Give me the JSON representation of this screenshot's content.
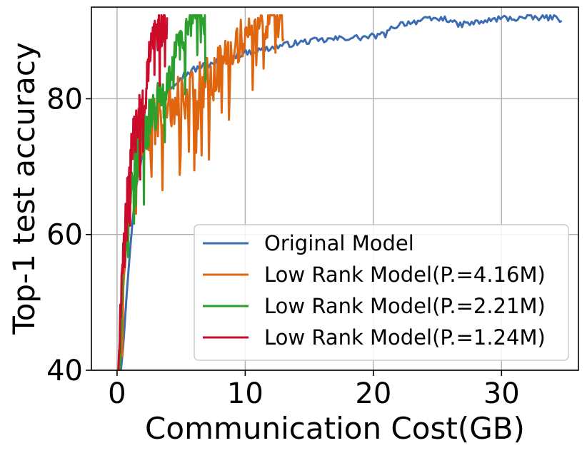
{
  "chart_data": {
    "type": "line",
    "title": "",
    "xlabel": "Communication Cost(GB)",
    "ylabel": "Top-1 test accuracy",
    "xlim": [
      -2,
      36
    ],
    "ylim": [
      40,
      93.5
    ],
    "xticks": [
      0,
      10,
      20,
      30
    ],
    "yticks": [
      40,
      60,
      80
    ],
    "xtick_labels": [
      "0",
      "10",
      "20",
      "30"
    ],
    "ytick_labels": [
      "40",
      "60",
      "80"
    ],
    "grid": true,
    "legend_position": "bottom-right",
    "series": [
      {
        "name": "Original Model",
        "color": "#3c6db2",
        "x_end": 34.7,
        "points": [
          [
            0.3,
            40
          ],
          [
            0.5,
            44
          ],
          [
            0.7,
            50
          ],
          [
            0.9,
            55
          ],
          [
            1.1,
            60
          ],
          [
            1.3,
            64
          ],
          [
            1.5,
            67
          ],
          [
            1.8,
            70
          ],
          [
            2.0,
            72
          ],
          [
            2.3,
            74
          ],
          [
            2.6,
            76
          ],
          [
            3.0,
            78
          ],
          [
            3.5,
            80
          ],
          [
            4.0,
            81.5
          ],
          [
            4.5,
            82.5
          ],
          [
            5.0,
            83.3
          ],
          [
            5.5,
            83.8
          ],
          [
            6.0,
            84.3
          ],
          [
            7.0,
            85
          ],
          [
            8.0,
            85.6
          ],
          [
            9.0,
            86.2
          ],
          [
            10.0,
            86.8
          ],
          [
            11.0,
            87.1
          ],
          [
            12.0,
            87.5
          ],
          [
            13.0,
            87.9
          ],
          [
            14.0,
            88.2
          ],
          [
            15.0,
            88.5
          ],
          [
            16.0,
            88.6
          ],
          [
            17.0,
            88.8
          ],
          [
            18.0,
            89
          ],
          [
            19.0,
            89
          ],
          [
            20.0,
            89.2
          ],
          [
            21.0,
            89.5
          ],
          [
            21.5,
            90.5
          ],
          [
            22.0,
            91
          ],
          [
            23.0,
            91.3
          ],
          [
            24.0,
            91.6
          ],
          [
            25.0,
            91.8
          ],
          [
            26.0,
            91.7
          ],
          [
            26.5,
            90.8
          ],
          [
            27.0,
            91
          ],
          [
            28.0,
            91.2
          ],
          [
            29.0,
            91.5
          ],
          [
            30.0,
            91.9
          ],
          [
            31.0,
            91.8
          ],
          [
            32.0,
            92
          ],
          [
            33.0,
            91.9
          ],
          [
            34.0,
            92
          ],
          [
            34.7,
            91.7
          ]
        ],
        "noise": 0.45
      },
      {
        "name": "Low Rank Model(P.=4.16M)",
        "color": "#e0650f",
        "x_end": 13.0,
        "points": [
          [
            0.2,
            40
          ],
          [
            0.4,
            48
          ],
          [
            0.6,
            56
          ],
          [
            0.8,
            62
          ],
          [
            1.0,
            66
          ],
          [
            1.3,
            69
          ],
          [
            1.6,
            72
          ],
          [
            2.0,
            74
          ],
          [
            2.5,
            76
          ],
          [
            3.0,
            77
          ],
          [
            3.5,
            78.5
          ],
          [
            4.0,
            79.5
          ],
          [
            4.5,
            80
          ],
          [
            5.0,
            80.5
          ],
          [
            5.5,
            81
          ],
          [
            6.0,
            81.5
          ],
          [
            6.5,
            82
          ],
          [
            7.0,
            82.5
          ],
          [
            7.5,
            83
          ],
          [
            8.0,
            84.5
          ],
          [
            8.5,
            86
          ],
          [
            9.0,
            87.5
          ],
          [
            9.5,
            88.5
          ],
          [
            10.0,
            89.5
          ],
          [
            10.5,
            90
          ],
          [
            11.0,
            90.5
          ],
          [
            11.5,
            90.8
          ],
          [
            12.0,
            91
          ],
          [
            12.5,
            91.3
          ],
          [
            13.0,
            91.5
          ]
        ],
        "noise": 3.2
      },
      {
        "name": "Low Rank Model(P.=2.21M)",
        "color": "#2ca02c",
        "x_end": 6.9,
        "points": [
          [
            0.1,
            40
          ],
          [
            0.3,
            47
          ],
          [
            0.5,
            54
          ],
          [
            0.7,
            60
          ],
          [
            0.9,
            64
          ],
          [
            1.2,
            68
          ],
          [
            1.5,
            71
          ],
          [
            1.8,
            73
          ],
          [
            2.2,
            75
          ],
          [
            2.6,
            77
          ],
          [
            3.0,
            78.5
          ],
          [
            3.5,
            80
          ],
          [
            4.0,
            81
          ],
          [
            4.3,
            84
          ],
          [
            4.6,
            87
          ],
          [
            5.0,
            89
          ],
          [
            5.5,
            90
          ],
          [
            6.0,
            90.6
          ],
          [
            6.5,
            91
          ],
          [
            6.9,
            91.3
          ]
        ],
        "noise": 3.0
      },
      {
        "name": "Low Rank Model(P.=1.24M)",
        "color": "#cc0a2a",
        "x_end": 3.9,
        "points": [
          [
            0.1,
            40
          ],
          [
            0.2,
            46
          ],
          [
            0.35,
            52
          ],
          [
            0.5,
            58
          ],
          [
            0.65,
            63
          ],
          [
            0.8,
            67
          ],
          [
            1.0,
            70
          ],
          [
            1.2,
            73
          ],
          [
            1.4,
            75
          ],
          [
            1.6,
            77
          ],
          [
            1.8,
            78.5
          ],
          [
            2.0,
            79.5
          ],
          [
            2.2,
            80.5
          ],
          [
            2.4,
            84
          ],
          [
            2.6,
            87
          ],
          [
            2.8,
            88.5
          ],
          [
            3.0,
            89.5
          ],
          [
            3.3,
            90
          ],
          [
            3.6,
            90.4
          ],
          [
            3.9,
            90.6
          ]
        ],
        "noise": 3.0
      }
    ]
  }
}
